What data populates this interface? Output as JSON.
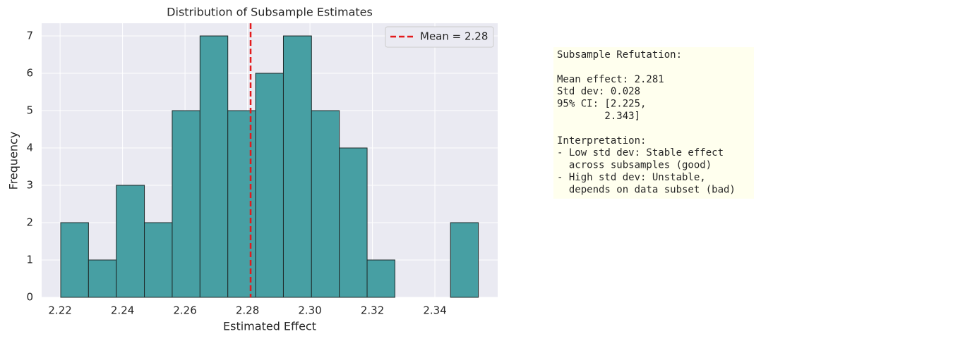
{
  "chart_data": {
    "type": "histogram",
    "title": "Distribution of Subsample Estimates",
    "x_label": "Estimated Effect",
    "y_label": "Frequency",
    "bins": [
      2.2202,
      2.2291,
      2.238,
      2.247,
      2.2559,
      2.2648,
      2.2737,
      2.2826,
      2.2915,
      2.3005,
      2.3094,
      2.3183,
      2.3272,
      2.3361,
      2.345,
      2.3539
    ],
    "counts": [
      2,
      1,
      3,
      2,
      5,
      7,
      5,
      6,
      7,
      5,
      4,
      1,
      0,
      0,
      2
    ],
    "color": "#479fa3",
    "xlim": [
      2.2141,
      2.3601
    ],
    "ylim": [
      0,
      7.34
    ],
    "xticks": [
      2.22,
      2.24,
      2.26,
      2.28,
      {
        "value": 2.3,
        "label": "2.30"
      },
      2.32,
      2.34
    ],
    "yticks": [
      0,
      1,
      2,
      3,
      4,
      5,
      6,
      7
    ],
    "grid": true,
    "mean_line": {
      "value": 2.281,
      "label": "Mean = 2.28",
      "color": "#e31a1c"
    },
    "legend": "upper right"
  },
  "text_box": {
    "title": "Subsample Refutation:",
    "stats": [
      "Mean effect: 2.281",
      "Std dev: 0.028",
      "95% CI: [2.225,",
      "        2.343]"
    ],
    "interpretation_title": "Interpretation:",
    "interpretation": [
      "- Low std dev: Stable effect",
      "  across subsamples (good)",
      "- High std dev: Unstable,",
      "  depends on data subset (bad)"
    ]
  }
}
